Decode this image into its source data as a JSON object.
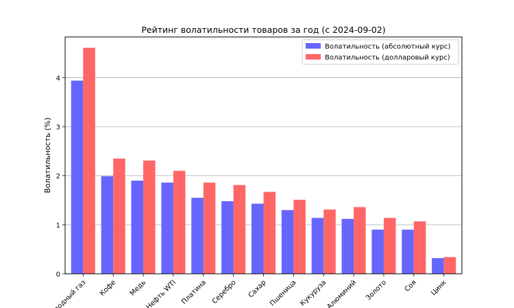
{
  "chart_data": {
    "type": "bar",
    "title": "Рейтинг волатильности товаров за год (с 2024-09-02)",
    "xlabel": "",
    "ylabel": "Волатильность (%)",
    "ylim": [
      0,
      4.83
    ],
    "yticks": [
      0,
      1,
      2,
      3,
      4
    ],
    "grid": "y",
    "legend_position": "top-right",
    "categories": [
      "Природный газ",
      "Кофе",
      "Медь",
      "Нефть WTI",
      "Платина",
      "Серебро",
      "Сахар",
      "Пшеница",
      "Кукуруза",
      "Алюминий",
      "Золото",
      "Соя",
      "Цинк"
    ],
    "series": [
      {
        "name": "Волатильность (абсолютный курс)",
        "color": "#6666ff",
        "values": [
          3.94,
          1.99,
          1.9,
          1.86,
          1.55,
          1.48,
          1.43,
          1.3,
          1.14,
          1.12,
          0.9,
          0.9,
          0.32
        ]
      },
      {
        "name": "Волатильность (долларовый курс)",
        "color": "#ff6666",
        "values": [
          4.61,
          2.35,
          2.31,
          2.1,
          1.86,
          1.81,
          1.67,
          1.51,
          1.31,
          1.36,
          1.14,
          1.07,
          0.34
        ]
      }
    ]
  }
}
